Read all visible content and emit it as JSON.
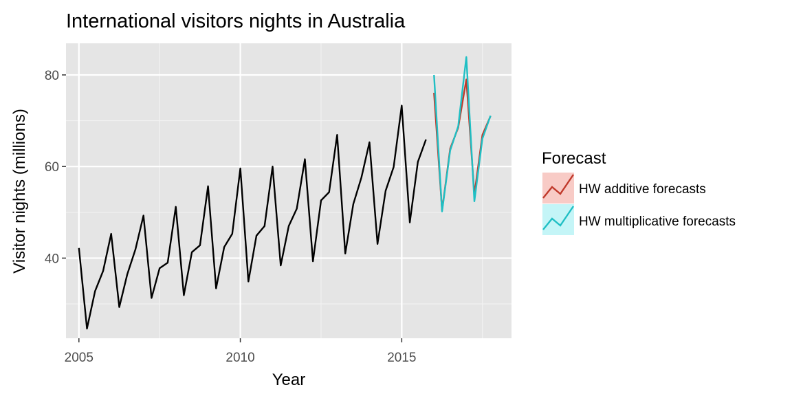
{
  "chart_data": {
    "type": "line",
    "title": "International visitors nights in Australia",
    "xlabel": "Year",
    "ylabel": "Visitor nights (millions)",
    "xlim": [
      2004.6,
      2018.4
    ],
    "ylim": [
      22.5,
      86.9
    ],
    "x_ticks": [
      2005,
      2010,
      2015
    ],
    "x_tick_labels": [
      "2005",
      "2010",
      "2015"
    ],
    "y_ticks": [
      40,
      60,
      80
    ],
    "y_tick_labels": [
      "40",
      "60",
      "80"
    ],
    "grid": true,
    "background": "#e5e5e5",
    "legend": {
      "title": "Forecast",
      "placement": "right",
      "items": [
        {
          "label": "HW additive forecasts",
          "color": "#c0392b",
          "fill": "#f8cbc6"
        },
        {
          "label": "HW multiplicative forecasts",
          "color": "#1fbfc4",
          "fill": "#c4f5f7"
        }
      ]
    },
    "series": [
      {
        "name": "",
        "color": "#000000",
        "x": [
          2005.0,
          2005.25,
          2005.5,
          2005.75,
          2006.0,
          2006.25,
          2006.5,
          2006.75,
          2007.0,
          2007.25,
          2007.5,
          2007.75,
          2008.0,
          2008.25,
          2008.5,
          2008.75,
          2009.0,
          2009.25,
          2009.5,
          2009.75,
          2010.0,
          2010.25,
          2010.5,
          2010.75,
          2011.0,
          2011.25,
          2011.5,
          2011.75,
          2012.0,
          2012.25,
          2012.5,
          2012.75,
          2013.0,
          2013.25,
          2013.5,
          2013.75,
          2014.0,
          2014.25,
          2014.5,
          2014.75,
          2015.0,
          2015.25,
          2015.5,
          2015.75
        ],
        "values": [
          42.2,
          24.6,
          32.8,
          37.2,
          45.3,
          29.3,
          36.5,
          41.9,
          49.3,
          31.3,
          37.8,
          39.0,
          51.2,
          31.9,
          41.3,
          42.8,
          55.7,
          33.4,
          42.4,
          45.3,
          59.6,
          34.9,
          44.9,
          47.0,
          60.0,
          38.4,
          47.0,
          50.8,
          61.6,
          39.3,
          52.6,
          54.4,
          66.9,
          41.0,
          51.8,
          57.6,
          65.3,
          43.1,
          54.7,
          59.9,
          73.3,
          47.8,
          61.0,
          65.9
        ]
      },
      {
        "name": "HW additive forecasts",
        "color": "#c0392b",
        "x": [
          2016.0,
          2016.25,
          2016.5,
          2016.75,
          2017.0,
          2017.25,
          2017.5,
          2017.75
        ],
        "values": [
          76.1,
          50.4,
          63.9,
          68.5,
          79.0,
          53.9,
          66.9,
          71.0
        ]
      },
      {
        "name": "HW multiplicative forecasts",
        "color": "#1fbfc4",
        "x": [
          2016.0,
          2016.25,
          2016.5,
          2016.75,
          2017.0,
          2017.25,
          2017.5,
          2017.75
        ],
        "values": [
          80.0,
          50.2,
          63.5,
          68.8,
          83.9,
          52.4,
          66.1,
          71.1
        ]
      }
    ]
  }
}
